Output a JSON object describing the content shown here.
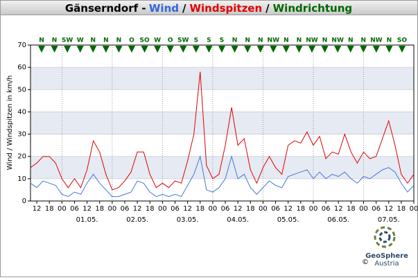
{
  "chart_data": {
    "type": "line",
    "title": [
      {
        "text": "Gänserndorf -",
        "color": "#000000"
      },
      {
        "text": "Wind",
        "color": "#3366dd"
      },
      {
        "text": "/",
        "color": "#000000"
      },
      {
        "text": "Windspitzen",
        "color": "#e00000"
      },
      {
        "text": "/",
        "color": "#000000"
      },
      {
        "text": "Windrichtung",
        "color": "#006600"
      }
    ],
    "y_label": "Wind / Windspitzen in km/h",
    "x": [
      -15,
      -12,
      -9,
      -6,
      -3,
      0,
      3,
      6,
      9,
      12,
      15,
      18,
      21,
      24,
      27,
      30,
      33,
      36,
      39,
      42,
      45,
      48,
      51,
      54,
      57,
      60,
      63,
      66,
      69,
      72,
      75,
      78,
      81,
      84,
      87,
      90,
      93,
      96,
      99,
      102,
      105,
      108,
      111,
      114,
      117,
      120,
      123,
      126,
      129,
      132,
      135,
      138,
      141,
      144,
      147,
      150,
      153,
      156,
      159,
      162,
      165,
      168
    ],
    "series": [
      {
        "name": "Windspitzen",
        "color": "#e00000",
        "values": [
          15,
          17,
          20,
          20,
          17,
          10,
          6,
          10,
          6,
          14,
          27,
          22,
          12,
          5,
          6,
          9,
          13,
          22,
          22,
          12,
          6,
          8,
          6,
          9,
          8,
          18,
          30,
          58,
          16,
          10,
          12,
          25,
          42,
          25,
          28,
          14,
          8,
          15,
          20,
          15,
          12,
          25,
          27,
          26,
          31,
          25,
          29,
          19,
          22,
          21,
          30,
          22,
          17,
          22,
          19,
          20,
          28,
          36,
          25,
          12,
          8,
          12
        ]
      },
      {
        "name": "Wind",
        "color": "#4477dd",
        "values": [
          8,
          6,
          9,
          8,
          7,
          3,
          2,
          4,
          3,
          8,
          12,
          8,
          5,
          2,
          2,
          3,
          4,
          9,
          8,
          4,
          2,
          3,
          2,
          3,
          2,
          7,
          12,
          20,
          5,
          4,
          6,
          10,
          20,
          10,
          12,
          6,
          3,
          6,
          9,
          7,
          6,
          11,
          12,
          13,
          14,
          10,
          13,
          10,
          12,
          11,
          13,
          10,
          8,
          11,
          10,
          12,
          14,
          15,
          13,
          8,
          4,
          7
        ]
      }
    ],
    "xlim": [
      -15,
      168
    ],
    "xticks": [
      {
        "value": -12,
        "label": "12"
      },
      {
        "value": -6,
        "label": "18"
      },
      {
        "value": 0,
        "label": "00"
      },
      {
        "value": 6,
        "label": "06"
      },
      {
        "value": 12,
        "label": "12"
      },
      {
        "value": 18,
        "label": "18"
      },
      {
        "value": 24,
        "label": "00"
      },
      {
        "value": 30,
        "label": "06"
      },
      {
        "value": 36,
        "label": "12"
      },
      {
        "value": 42,
        "label": "18"
      },
      {
        "value": 48,
        "label": "00"
      },
      {
        "value": 54,
        "label": "06"
      },
      {
        "value": 60,
        "label": "12"
      },
      {
        "value": 66,
        "label": "18"
      },
      {
        "value": 72,
        "label": "00"
      },
      {
        "value": 78,
        "label": "06"
      },
      {
        "value": 84,
        "label": "12"
      },
      {
        "value": 90,
        "label": "18"
      },
      {
        "value": 96,
        "label": "00"
      },
      {
        "value": 102,
        "label": "06"
      },
      {
        "value": 108,
        "label": "12"
      },
      {
        "value": 114,
        "label": "18"
      },
      {
        "value": 120,
        "label": "00"
      },
      {
        "value": 126,
        "label": "06"
      },
      {
        "value": 132,
        "label": "12"
      },
      {
        "value": 138,
        "label": "18"
      },
      {
        "value": 144,
        "label": "00"
      },
      {
        "value": 150,
        "label": "06"
      },
      {
        "value": 156,
        "label": "12"
      },
      {
        "value": 162,
        "label": "18"
      },
      {
        "value": 168,
        "label": "00"
      }
    ],
    "day_labels": [
      {
        "value": 12,
        "label": "01.05."
      },
      {
        "value": 36,
        "label": "02.05."
      },
      {
        "value": 60,
        "label": "03.05."
      },
      {
        "value": 84,
        "label": "04.05."
      },
      {
        "value": 108,
        "label": "05.05."
      },
      {
        "value": 132,
        "label": "06.05."
      },
      {
        "value": 156,
        "label": "07.05."
      }
    ],
    "ylim": [
      0,
      70
    ],
    "yticks": [
      0,
      10,
      20,
      30,
      40,
      50,
      60,
      70
    ],
    "directions": [
      "N",
      "N",
      "SW",
      "W",
      "N",
      "N",
      "N",
      "O",
      "SO",
      "W",
      "O",
      "SW",
      "S",
      "S",
      "S",
      "N",
      "N",
      "N",
      "NW",
      "N",
      "N",
      "NW",
      "N",
      "NW",
      "N",
      "N",
      "NW",
      "N",
      "SO"
    ],
    "direction_color": "#006600",
    "logo": {
      "name": "GeoSphere",
      "sub": "Austria",
      "copyright": "©"
    }
  }
}
